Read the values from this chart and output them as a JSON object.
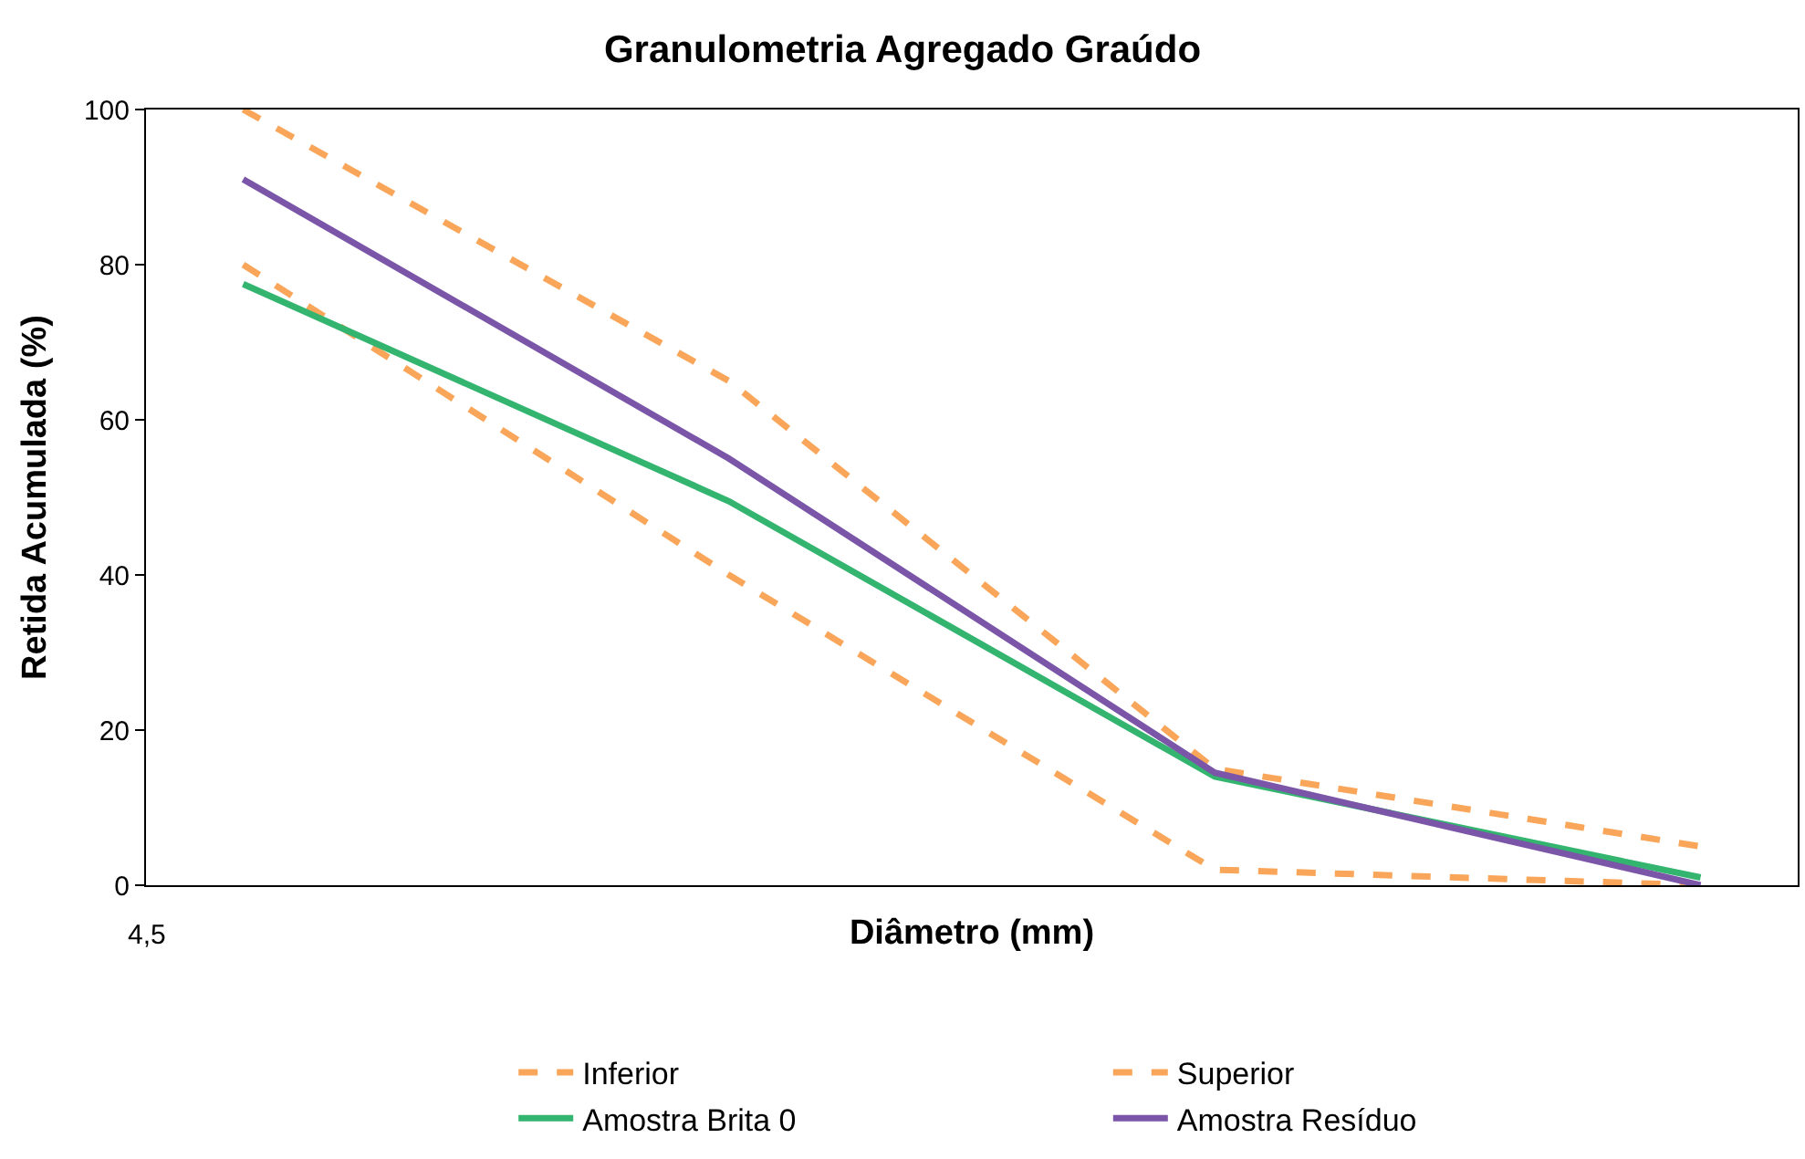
{
  "chart_data": {
    "type": "line",
    "title": "Granulometria Agregado Graúdo",
    "xlabel": "Diâmetro (mm)",
    "ylabel": "Retida Acumulada (%)",
    "categories": [
      null,
      null,
      null,
      null
    ],
    "annotations": [
      "4,5"
    ],
    "ylim": [
      0,
      100
    ],
    "yticks": [
      0,
      20,
      40,
      60,
      80,
      100
    ],
    "legend": "bottom",
    "marker": "none",
    "series": [
      {
        "name": "Inferior",
        "color": "#f9a65a",
        "line_style": "dashed",
        "values": [
          80,
          40,
          2,
          0
        ]
      },
      {
        "name": "Superior",
        "color": "#f9a65a",
        "line_style": "dashed",
        "values": [
          100,
          65,
          15,
          5
        ]
      },
      {
        "name": "Amostra Brita 0",
        "color": "#33b46f",
        "line_style": "solid",
        "values": [
          77.5,
          49.5,
          14,
          1
        ]
      },
      {
        "name": "Amostra Resíduo",
        "color": "#7a55a8",
        "line_style": "solid",
        "values": [
          91,
          55,
          14.5,
          0
        ]
      }
    ]
  }
}
